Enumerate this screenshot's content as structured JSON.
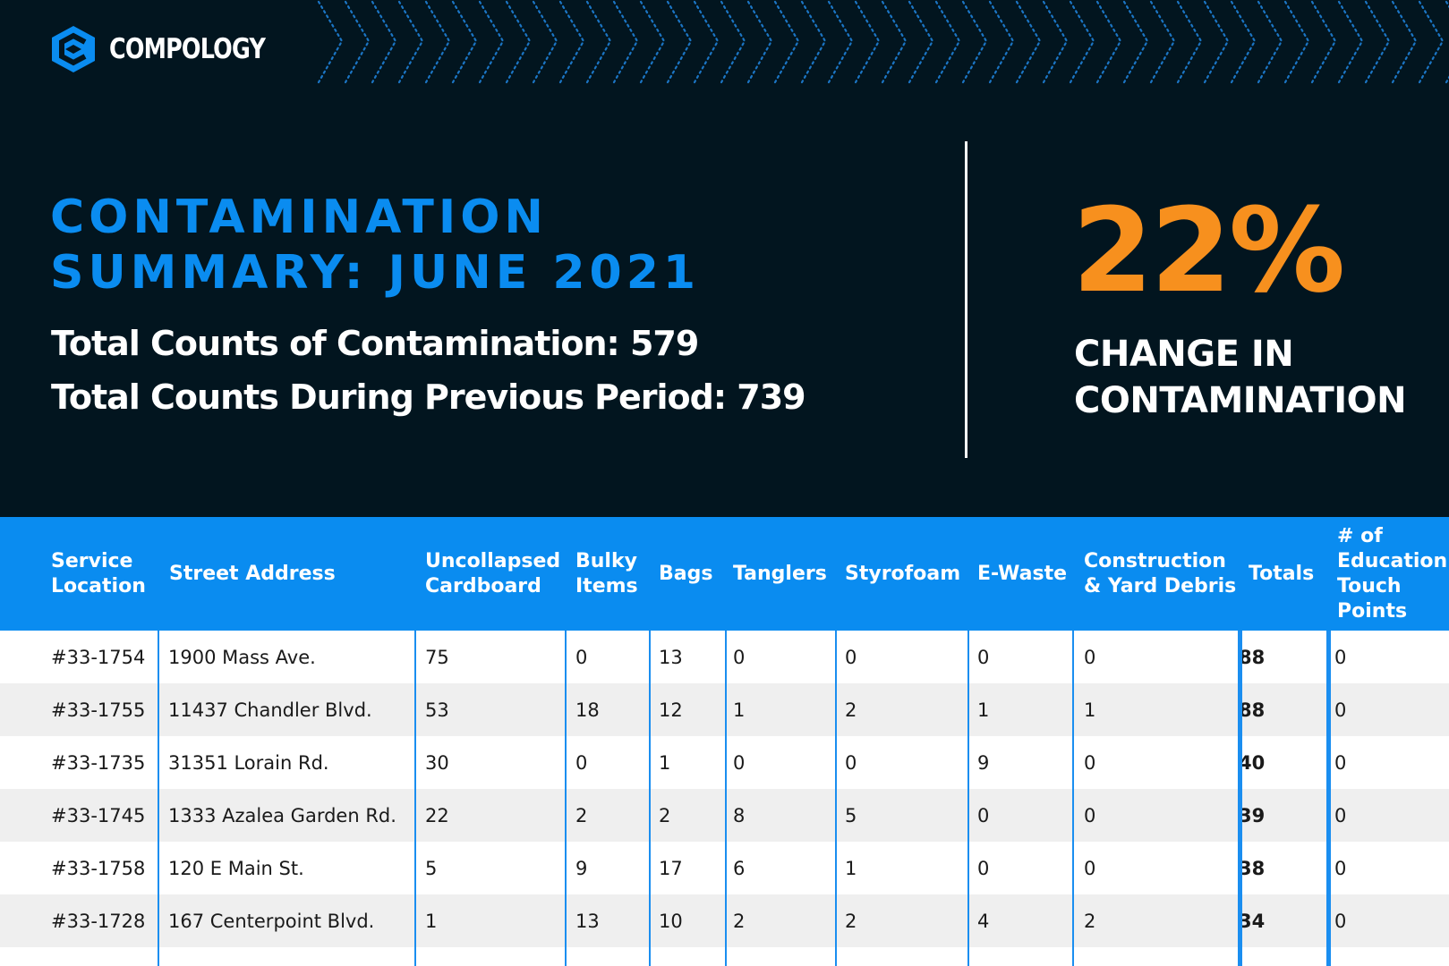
{
  "brand": {
    "name": "COMPOLOGY",
    "logo_icon": "compology-logo-icon"
  },
  "colors": {
    "background": "#02151f",
    "accent_blue": "#0a8cf0",
    "accent_orange": "#f7901e"
  },
  "summary": {
    "title_line1": "CONTAMINATION",
    "title_line2": "SUMMARY: JUNE 2021",
    "total_line": "Total Counts of Contamination: 579",
    "previous_line": "Total Counts During Previous Period: 739"
  },
  "change": {
    "percent": "22%",
    "label_line1": "CHANGE IN",
    "label_line2": "CONTAMINATION"
  },
  "table": {
    "headers": [
      "Service\nLocation",
      "Street Address",
      "Uncollapsed\nCardboard",
      "Bulky\nItems",
      "Bags",
      "Tanglers",
      "Styrofoam",
      "E-Waste",
      "Construction\n& Yard Debris",
      "Totals",
      "# of\nEducation\nTouch\nPoints"
    ],
    "rows": [
      [
        "#33-1754",
        "1900 Mass Ave.",
        "75",
        "0",
        "13",
        "0",
        "0",
        "0",
        "0",
        "88",
        "0"
      ],
      [
        "#33-1755",
        "11437 Chandler Blvd.",
        "53",
        "18",
        "12",
        "1",
        "2",
        "1",
        "1",
        "88",
        "0"
      ],
      [
        "#33-1735",
        "31351 Lorain Rd.",
        "30",
        "0",
        "1",
        "0",
        "0",
        "9",
        "0",
        "40",
        "0"
      ],
      [
        "#33-1745",
        "1333 Azalea Garden Rd.",
        "22",
        "2",
        "2",
        "8",
        "5",
        "0",
        "0",
        "39",
        "0"
      ],
      [
        "#33-1758",
        "120 E Main St.",
        "5",
        "9",
        "17",
        "6",
        "1",
        "0",
        "0",
        "38",
        "0"
      ],
      [
        "#33-1728",
        "167 Centerpoint Blvd.",
        "1",
        "13",
        "10",
        "2",
        "2",
        "4",
        "2",
        "34",
        "0"
      ]
    ]
  }
}
